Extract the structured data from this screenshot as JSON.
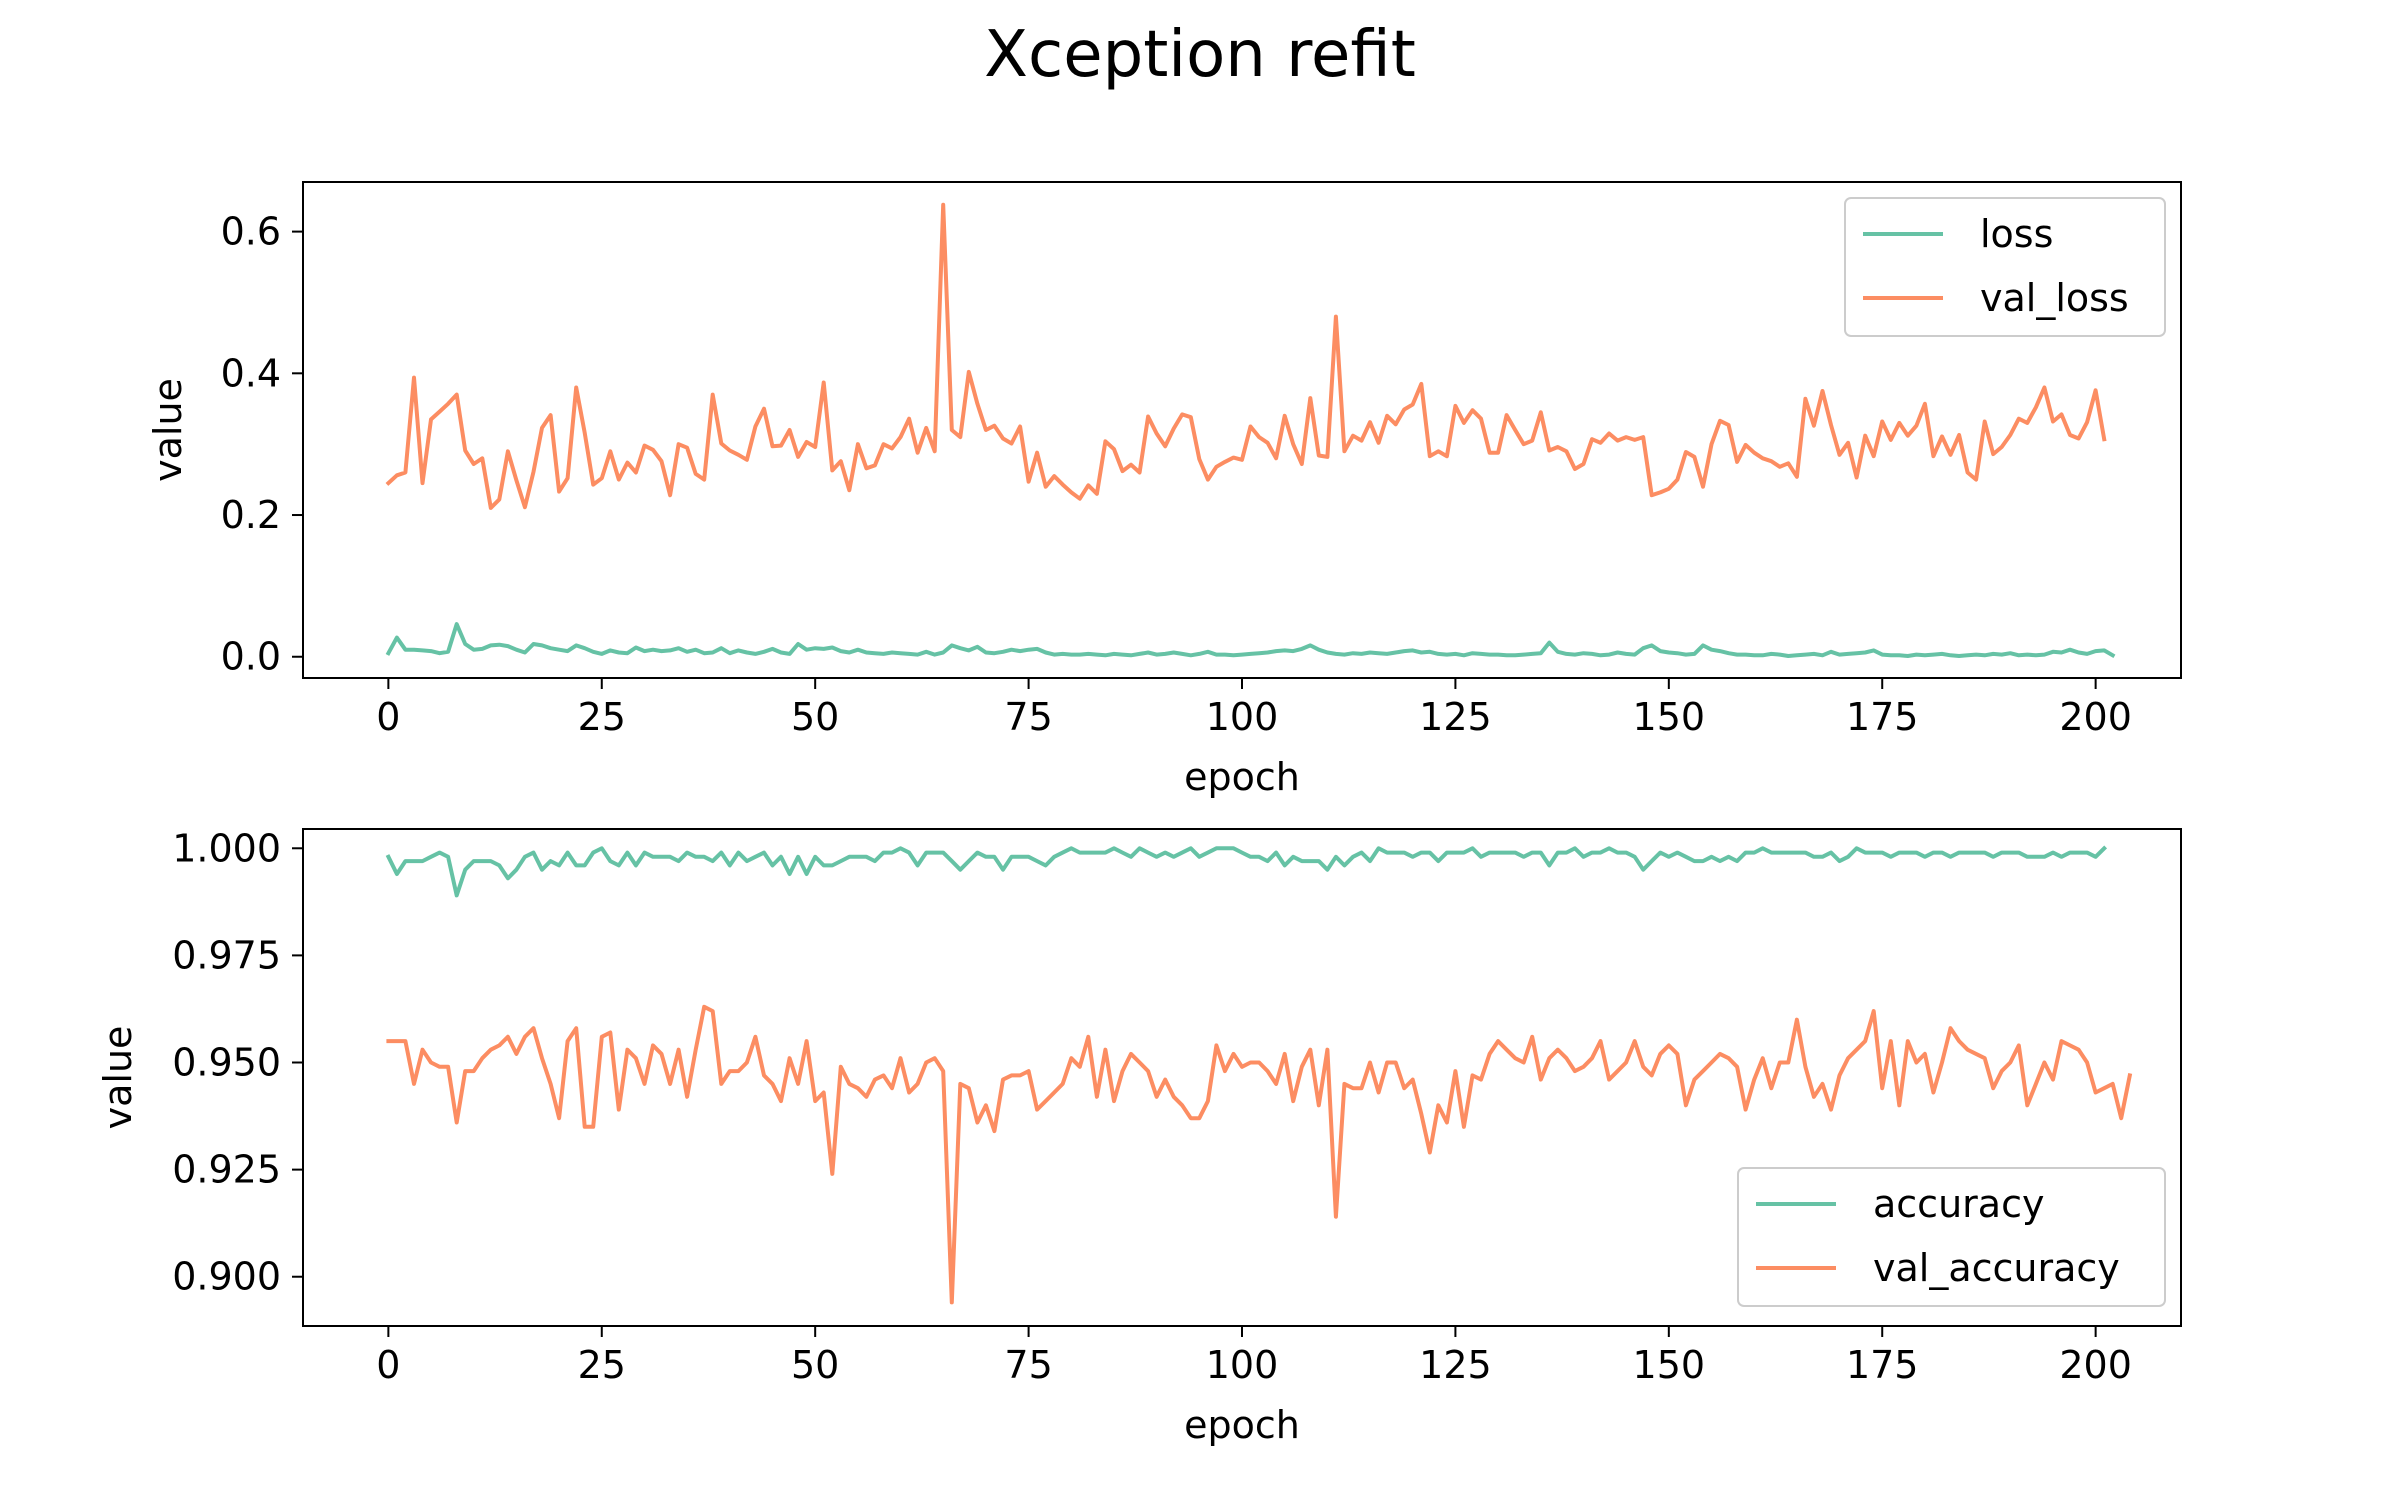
{
  "figure": {
    "title": "Xception refit"
  },
  "colors": {
    "green": "#66c2a5",
    "orange": "#fc8d62"
  },
  "chart_data": [
    {
      "type": "line",
      "title": "",
      "xlabel": "epoch",
      "ylabel": "value",
      "xlim": [
        -10,
        210
      ],
      "ylim": [
        -0.03,
        0.67
      ],
      "xticks": [
        0,
        25,
        50,
        75,
        100,
        125,
        150,
        175,
        200
      ],
      "xtick_labels": [
        "0",
        "25",
        "50",
        "75",
        "100",
        "125",
        "150",
        "175",
        "200"
      ],
      "yticks": [
        0.0,
        0.2,
        0.4,
        0.6
      ],
      "ytick_labels": [
        "0.0",
        "0.2",
        "0.4",
        "0.6"
      ],
      "legend_position": "top-right",
      "x_start": 0,
      "x_step": 1,
      "series": [
        {
          "name": "loss",
          "color": "#66c2a5",
          "values": [
            0.005,
            0.027,
            0.01,
            0.01,
            0.009,
            0.008,
            0.005,
            0.007,
            0.046,
            0.018,
            0.01,
            0.011,
            0.016,
            0.017,
            0.015,
            0.01,
            0.006,
            0.018,
            0.016,
            0.012,
            0.01,
            0.008,
            0.016,
            0.012,
            0.007,
            0.004,
            0.009,
            0.006,
            0.005,
            0.013,
            0.008,
            0.01,
            0.008,
            0.009,
            0.012,
            0.007,
            0.01,
            0.005,
            0.006,
            0.012,
            0.005,
            0.009,
            0.006,
            0.004,
            0.007,
            0.011,
            0.006,
            0.004,
            0.018,
            0.01,
            0.012,
            0.011,
            0.013,
            0.008,
            0.006,
            0.01,
            0.006,
            0.005,
            0.004,
            0.006,
            0.005,
            0.004,
            0.003,
            0.007,
            0.003,
            0.006,
            0.016,
            0.012,
            0.009,
            0.014,
            0.006,
            0.005,
            0.007,
            0.01,
            0.008,
            0.01,
            0.011,
            0.006,
            0.003,
            0.004,
            0.003,
            0.003,
            0.004,
            0.003,
            0.002,
            0.004,
            0.003,
            0.002,
            0.004,
            0.006,
            0.003,
            0.004,
            0.006,
            0.004,
            0.002,
            0.004,
            0.007,
            0.003,
            0.003,
            0.002,
            0.003,
            0.004,
            0.005,
            0.006,
            0.008,
            0.009,
            0.008,
            0.011,
            0.016,
            0.01,
            0.006,
            0.004,
            0.003,
            0.005,
            0.004,
            0.006,
            0.005,
            0.004,
            0.006,
            0.008,
            0.009,
            0.006,
            0.007,
            0.004,
            0.003,
            0.004,
            0.002,
            0.005,
            0.004,
            0.003,
            0.003,
            0.002,
            0.002,
            0.003,
            0.004,
            0.005,
            0.02,
            0.007,
            0.004,
            0.003,
            0.005,
            0.004,
            0.002,
            0.003,
            0.006,
            0.004,
            0.003,
            0.012,
            0.016,
            0.008,
            0.006,
            0.005,
            0.003,
            0.004,
            0.016,
            0.01,
            0.008,
            0.005,
            0.003,
            0.003,
            0.002,
            0.002,
            0.004,
            0.003,
            0.001,
            0.002,
            0.003,
            0.004,
            0.002,
            0.007,
            0.003,
            0.004,
            0.005,
            0.006,
            0.009,
            0.003,
            0.002,
            0.002,
            0.001,
            0.003,
            0.002,
            0.003,
            0.004,
            0.002,
            0.001,
            0.002,
            0.003,
            0.002,
            0.004,
            0.003,
            0.005,
            0.002,
            0.003,
            0.002,
            0.003,
            0.007,
            0.006,
            0.01,
            0.006,
            0.004,
            0.008,
            0.009,
            0.002
          ]
        },
        {
          "name": "val_loss",
          "color": "#fc8d62",
          "values": [
            0.245,
            0.256,
            0.26,
            0.394,
            0.245,
            0.335,
            0.346,
            0.357,
            0.37,
            0.291,
            0.272,
            0.28,
            0.21,
            0.222,
            0.29,
            0.249,
            0.211,
            0.261,
            0.323,
            0.341,
            0.233,
            0.252,
            0.38,
            0.316,
            0.243,
            0.252,
            0.29,
            0.25,
            0.274,
            0.26,
            0.298,
            0.292,
            0.276,
            0.228,
            0.3,
            0.295,
            0.258,
            0.25,
            0.37,
            0.301,
            0.291,
            0.285,
            0.278,
            0.325,
            0.35,
            0.297,
            0.298,
            0.32,
            0.282,
            0.303,
            0.296,
            0.387,
            0.263,
            0.276,
            0.235,
            0.3,
            0.266,
            0.27,
            0.3,
            0.294,
            0.31,
            0.336,
            0.288,
            0.323,
            0.29,
            0.638,
            0.32,
            0.31,
            0.402,
            0.357,
            0.32,
            0.326,
            0.308,
            0.301,
            0.325,
            0.247,
            0.288,
            0.24,
            0.255,
            0.243,
            0.232,
            0.223,
            0.242,
            0.23,
            0.304,
            0.293,
            0.262,
            0.271,
            0.26,
            0.339,
            0.315,
            0.297,
            0.322,
            0.342,
            0.338,
            0.279,
            0.25,
            0.268,
            0.275,
            0.281,
            0.278,
            0.325,
            0.31,
            0.302,
            0.28,
            0.34,
            0.3,
            0.272,
            0.365,
            0.284,
            0.282,
            0.48,
            0.29,
            0.312,
            0.305,
            0.331,
            0.302,
            0.34,
            0.328,
            0.349,
            0.356,
            0.385,
            0.283,
            0.29,
            0.283,
            0.354,
            0.33,
            0.348,
            0.336,
            0.288,
            0.288,
            0.341,
            0.32,
            0.3,
            0.305,
            0.345,
            0.291,
            0.296,
            0.29,
            0.265,
            0.272,
            0.307,
            0.302,
            0.315,
            0.305,
            0.31,
            0.306,
            0.31,
            0.228,
            0.232,
            0.237,
            0.25,
            0.289,
            0.282,
            0.24,
            0.3,
            0.333,
            0.327,
            0.275,
            0.299,
            0.288,
            0.28,
            0.276,
            0.268,
            0.273,
            0.254,
            0.364,
            0.326,
            0.375,
            0.327,
            0.285,
            0.302,
            0.253,
            0.312,
            0.283,
            0.332,
            0.306,
            0.33,
            0.312,
            0.326,
            0.357,
            0.283,
            0.311,
            0.285,
            0.313,
            0.26,
            0.25,
            0.332,
            0.286,
            0.296,
            0.313,
            0.336,
            0.33,
            0.352,
            0.38,
            0.332,
            0.342,
            0.313,
            0.308,
            0.331,
            0.376,
            0.307
          ]
        }
      ]
    },
    {
      "type": "line",
      "title": "",
      "xlabel": "epoch",
      "ylabel": "value",
      "xlim": [
        -10,
        210
      ],
      "ylim": [
        0.8885,
        1.0045
      ],
      "xticks": [
        0,
        25,
        50,
        75,
        100,
        125,
        150,
        175,
        200
      ],
      "xtick_labels": [
        "0",
        "25",
        "50",
        "75",
        "100",
        "125",
        "150",
        "175",
        "200"
      ],
      "yticks": [
        0.9,
        0.925,
        0.95,
        0.975,
        1.0
      ],
      "ytick_labels": [
        "0.900",
        "0.925",
        "0.950",
        "0.975",
        "1.000"
      ],
      "legend_position": "bottom-right",
      "x_start": 0,
      "x_step": 1,
      "series": [
        {
          "name": "accuracy",
          "color": "#66c2a5",
          "values": [
            0.998,
            0.994,
            0.997,
            0.997,
            0.997,
            0.998,
            0.999,
            0.998,
            0.989,
            0.995,
            0.997,
            0.997,
            0.997,
            0.996,
            0.993,
            0.995,
            0.998,
            0.999,
            0.995,
            0.997,
            0.996,
            0.999,
            0.996,
            0.996,
            0.999,
            1.0,
            0.997,
            0.996,
            0.999,
            0.996,
            0.999,
            0.998,
            0.998,
            0.998,
            0.997,
            0.999,
            0.998,
            0.998,
            0.997,
            0.999,
            0.996,
            0.999,
            0.997,
            0.998,
            0.999,
            0.996,
            0.998,
            0.994,
            0.998,
            0.994,
            0.998,
            0.996,
            0.996,
            0.997,
            0.998,
            0.998,
            0.998,
            0.997,
            0.999,
            0.999,
            1.0,
            0.999,
            0.996,
            0.999,
            0.999,
            0.999,
            0.997,
            0.995,
            0.997,
            0.999,
            0.998,
            0.998,
            0.995,
            0.998,
            0.998,
            0.998,
            0.997,
            0.996,
            0.998,
            0.999,
            1.0,
            0.999,
            0.999,
            0.999,
            0.999,
            1.0,
            0.999,
            0.998,
            1.0,
            0.999,
            0.998,
            0.999,
            0.998,
            0.999,
            1.0,
            0.998,
            0.999,
            1.0,
            1.0,
            1.0,
            0.999,
            0.998,
            0.998,
            0.997,
            0.999,
            0.996,
            0.998,
            0.997,
            0.997,
            0.997,
            0.995,
            0.998,
            0.996,
            0.998,
            0.999,
            0.997,
            1.0,
            0.999,
            0.999,
            0.999,
            0.998,
            0.999,
            0.999,
            0.997,
            0.999,
            0.999,
            0.999,
            1.0,
            0.998,
            0.999,
            0.999,
            0.999,
            0.999,
            0.998,
            0.999,
            0.999,
            0.996,
            0.999,
            0.999,
            1.0,
            0.998,
            0.999,
            0.999,
            1.0,
            0.999,
            0.999,
            0.998,
            0.995,
            0.997,
            0.999,
            0.998,
            0.999,
            0.998,
            0.997,
            0.997,
            0.998,
            0.997,
            0.998,
            0.997,
            0.999,
            0.999,
            1.0,
            0.999,
            0.999,
            0.999,
            0.999,
            0.999,
            0.998,
            0.998,
            0.999,
            0.997,
            0.998,
            1.0,
            0.999,
            0.999,
            0.999,
            0.998,
            0.999,
            0.999,
            0.999,
            0.998,
            0.999,
            0.999,
            0.998,
            0.999,
            0.999,
            0.999,
            0.999,
            0.998,
            0.999,
            0.999,
            0.999,
            0.998,
            0.998,
            0.998,
            0.999,
            0.998,
            0.999,
            0.999,
            0.999,
            0.998,
            1.0
          ]
        },
        {
          "name": "val_accuracy",
          "color": "#fc8d62",
          "values": [
            0.955,
            0.955,
            0.955,
            0.945,
            0.953,
            0.95,
            0.949,
            0.949,
            0.936,
            0.948,
            0.948,
            0.951,
            0.953,
            0.954,
            0.956,
            0.952,
            0.956,
            0.958,
            0.951,
            0.945,
            0.937,
            0.955,
            0.958,
            0.935,
            0.935,
            0.956,
            0.957,
            0.939,
            0.953,
            0.951,
            0.945,
            0.954,
            0.952,
            0.945,
            0.953,
            0.942,
            0.953,
            0.963,
            0.962,
            0.945,
            0.948,
            0.948,
            0.95,
            0.956,
            0.947,
            0.945,
            0.941,
            0.951,
            0.945,
            0.955,
            0.941,
            0.943,
            0.924,
            0.949,
            0.945,
            0.944,
            0.942,
            0.946,
            0.947,
            0.944,
            0.951,
            0.943,
            0.945,
            0.95,
            0.951,
            0.948,
            0.894,
            0.945,
            0.944,
            0.936,
            0.94,
            0.934,
            0.946,
            0.947,
            0.947,
            0.948,
            0.939,
            0.941,
            0.943,
            0.945,
            0.951,
            0.949,
            0.956,
            0.942,
            0.953,
            0.941,
            0.948,
            0.952,
            0.95,
            0.948,
            0.942,
            0.946,
            0.942,
            0.94,
            0.937,
            0.937,
            0.941,
            0.954,
            0.948,
            0.952,
            0.949,
            0.95,
            0.95,
            0.948,
            0.945,
            0.952,
            0.941,
            0.949,
            0.953,
            0.94,
            0.953,
            0.914,
            0.945,
            0.944,
            0.944,
            0.95,
            0.943,
            0.95,
            0.95,
            0.944,
            0.946,
            0.938,
            0.929,
            0.94,
            0.936,
            0.948,
            0.935,
            0.947,
            0.946,
            0.952,
            0.955,
            0.953,
            0.951,
            0.95,
            0.956,
            0.946,
            0.951,
            0.953,
            0.951,
            0.948,
            0.949,
            0.951,
            0.955,
            0.946,
            0.948,
            0.95,
            0.955,
            0.949,
            0.947,
            0.952,
            0.954,
            0.952,
            0.94,
            0.946,
            0.948,
            0.95,
            0.952,
            0.951,
            0.949,
            0.939,
            0.946,
            0.951,
            0.944,
            0.95,
            0.95,
            0.96,
            0.949,
            0.942,
            0.945,
            0.939,
            0.947,
            0.951,
            0.953,
            0.955,
            0.962,
            0.944,
            0.955,
            0.94,
            0.955,
            0.95,
            0.952,
            0.943,
            0.95,
            0.958,
            0.955,
            0.953,
            0.952,
            0.951,
            0.944,
            0.948,
            0.95,
            0.954,
            0.94,
            0.945,
            0.95,
            0.946,
            0.955,
            0.954,
            0.953,
            0.95,
            0.943,
            0.944,
            0.945,
            0.937,
            0.947
          ]
        }
      ]
    }
  ]
}
